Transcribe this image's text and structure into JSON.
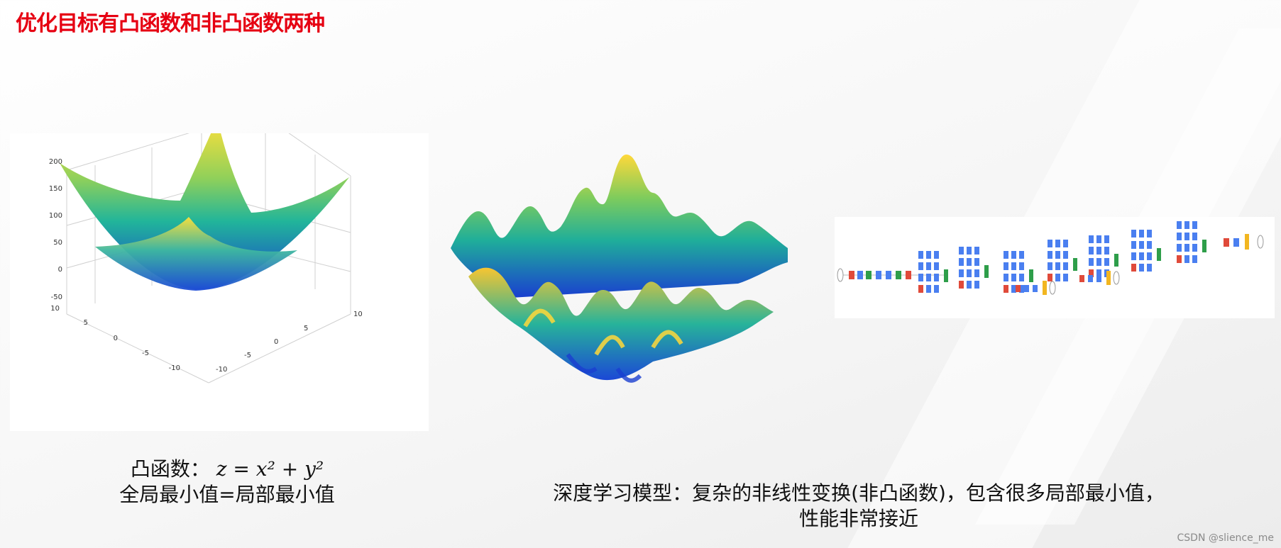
{
  "title": "优化目标有凸函数和非凸函数两种",
  "convex_plot": {
    "z_ticks": [
      "200",
      "150",
      "100",
      "50",
      "0",
      "-50"
    ],
    "x_ticks": [
      "10",
      "5",
      "0",
      "-5",
      "-10"
    ],
    "y_ticks": [
      "-10",
      "-5",
      "0",
      "5",
      "10"
    ]
  },
  "caption_left": {
    "prefix": "凸函数：",
    "formula": "z = x² + y²",
    "line2": "全局最小值=局部最小值"
  },
  "caption_right": {
    "line1": "深度学习模型：复杂的非线性变换(非凸函数)，包含很多局部最小值，",
    "line2": "性能非常接近"
  },
  "watermark": "CSDN @slience_me",
  "colors": {
    "title": "#e60012",
    "surface_low": "#1a3fd0",
    "surface_mid": "#21b59a",
    "surface_high": "#ffe03a"
  }
}
